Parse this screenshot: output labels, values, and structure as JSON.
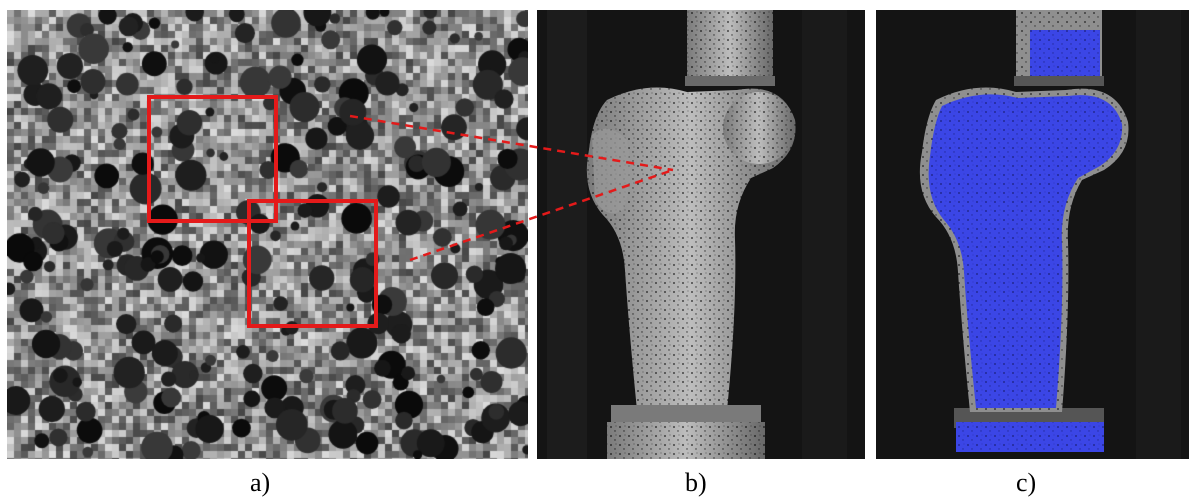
{
  "figure": {
    "panels": [
      {
        "id": "a",
        "caption": "a)",
        "content": "speckle-pattern-zoom",
        "subset_count": 2
      },
      {
        "id": "b",
        "caption": "b)",
        "content": "femur-specimen-speckled"
      },
      {
        "id": "c",
        "caption": "c)",
        "content": "femur-specimen-roi-mask"
      }
    ],
    "colors": {
      "subset_box": "#e41a1a",
      "roi_mask": "#3b46e6",
      "background": "#ffffff"
    }
  }
}
